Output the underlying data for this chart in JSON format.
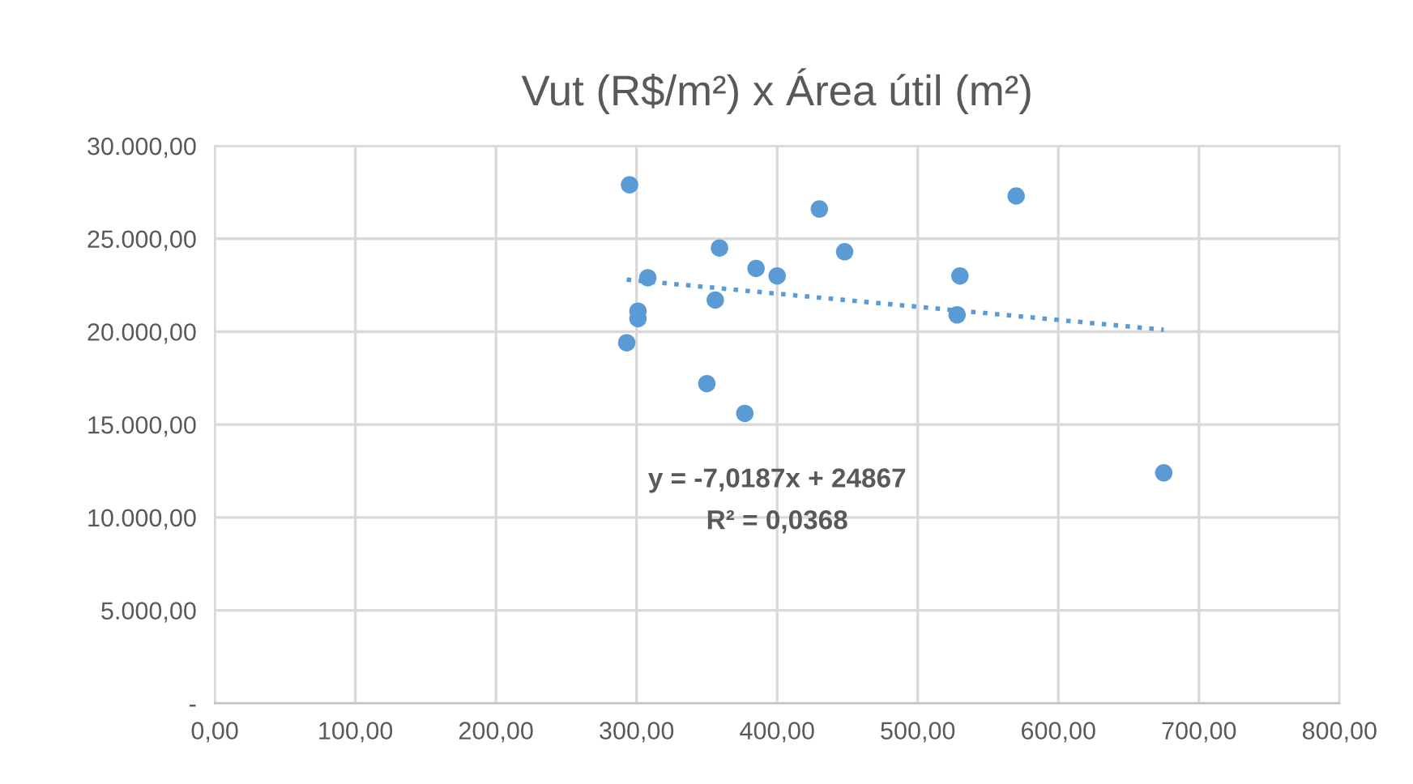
{
  "chart_data": {
    "type": "scatter",
    "title": "Vut (R$/m²) x Área útil (m²)",
    "series": [
      {
        "color": "#5b9bd5",
        "marker": "circle",
        "x": [
          295,
          293,
          301,
          301,
          308,
          359,
          356,
          350,
          377,
          385,
          400,
          430,
          448,
          530,
          528,
          570,
          675
        ],
        "values": [
          27900,
          19400,
          21100,
          20700,
          22900,
          24500,
          21700,
          17200,
          15600,
          23400,
          23000,
          26600,
          24300,
          23000,
          20900,
          27300,
          12400
        ]
      },
      {
        "type": "line",
        "color": "#5b9bd5",
        "line_style": "dotted",
        "x": [
          293,
          675
        ],
        "values": [
          22800,
          20100
        ]
      }
    ],
    "xlim": [
      0,
      800
    ],
    "ylim": [
      0,
      30000
    ],
    "xticks": [
      {
        "value": 0,
        "label": "0,00"
      },
      {
        "value": 100,
        "label": "100,00"
      },
      {
        "value": 200,
        "label": "200,00"
      },
      {
        "value": 300,
        "label": "300,00"
      },
      {
        "value": 400,
        "label": "400,00"
      },
      {
        "value": 500,
        "label": "500,00"
      },
      {
        "value": 600,
        "label": "600,00"
      },
      {
        "value": 700,
        "label": "700,00"
      },
      {
        "value": 800,
        "label": "800,00"
      }
    ],
    "yticks": [
      {
        "value": 0,
        "label": "-"
      },
      {
        "value": 5000,
        "label": "5.000,00"
      },
      {
        "value": 10000,
        "label": "10.000,00"
      },
      {
        "value": 15000,
        "label": "15.000,00"
      },
      {
        "value": 20000,
        "label": "20.000,00"
      },
      {
        "value": 25000,
        "label": "25.000,00"
      },
      {
        "value": 30000,
        "label": "30.000,00"
      }
    ],
    "grid": true,
    "annotations": [
      "y = -7,0187x + 24867",
      "R² = 0,0368"
    ]
  }
}
